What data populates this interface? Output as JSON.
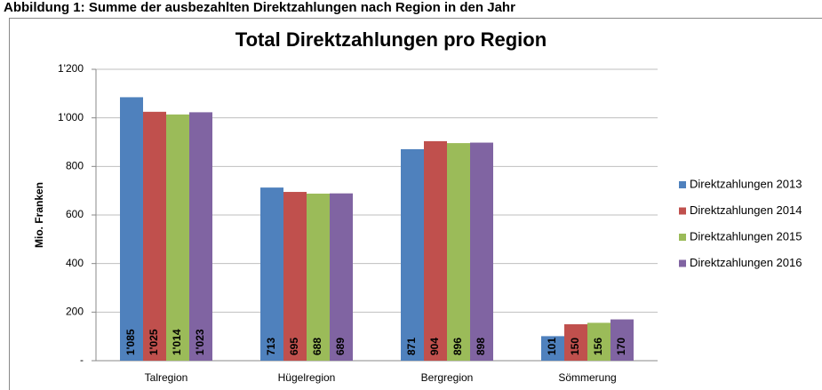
{
  "caption": "Abbildung 1: Summe der ausbezahlten Direktzahlungen nach Region in den Jahr",
  "chart_data": {
    "type": "bar",
    "title": "Total Direktzahlungen pro Region",
    "ylabel": "Mio. Franken",
    "categories": [
      "Talregion",
      "Hügelregion",
      "Bergregion",
      "Sömmerung"
    ],
    "series": [
      {
        "name": "Direktzahlungen 2013",
        "color": "#4f81bd",
        "values": [
          1085,
          713,
          871,
          101
        ],
        "value_labels": [
          "1'085",
          "713",
          "871",
          "101"
        ]
      },
      {
        "name": "Direktzahlungen 2014",
        "color": "#c0504d",
        "values": [
          1025,
          695,
          904,
          150
        ],
        "value_labels": [
          "1'025",
          "695",
          "904",
          "150"
        ]
      },
      {
        "name": "Direktzahlungen 2015",
        "color": "#9bbb59",
        "values": [
          1014,
          688,
          896,
          156
        ],
        "value_labels": [
          "1'014",
          "688",
          "896",
          "156"
        ]
      },
      {
        "name": "Direktzahlungen 2016",
        "color": "#8064a2",
        "values": [
          1023,
          689,
          898,
          170
        ],
        "value_labels": [
          "1'023",
          "689",
          "898",
          "170"
        ]
      }
    ],
    "ylim": [
      0,
      1200
    ],
    "yticks": [
      {
        "value": 0,
        "label": "-"
      },
      200,
      400,
      600,
      800,
      {
        "value": 1000,
        "label": "1'000"
      },
      {
        "value": 1200,
        "label": "1'200"
      }
    ],
    "grid": true,
    "legend": "right"
  }
}
